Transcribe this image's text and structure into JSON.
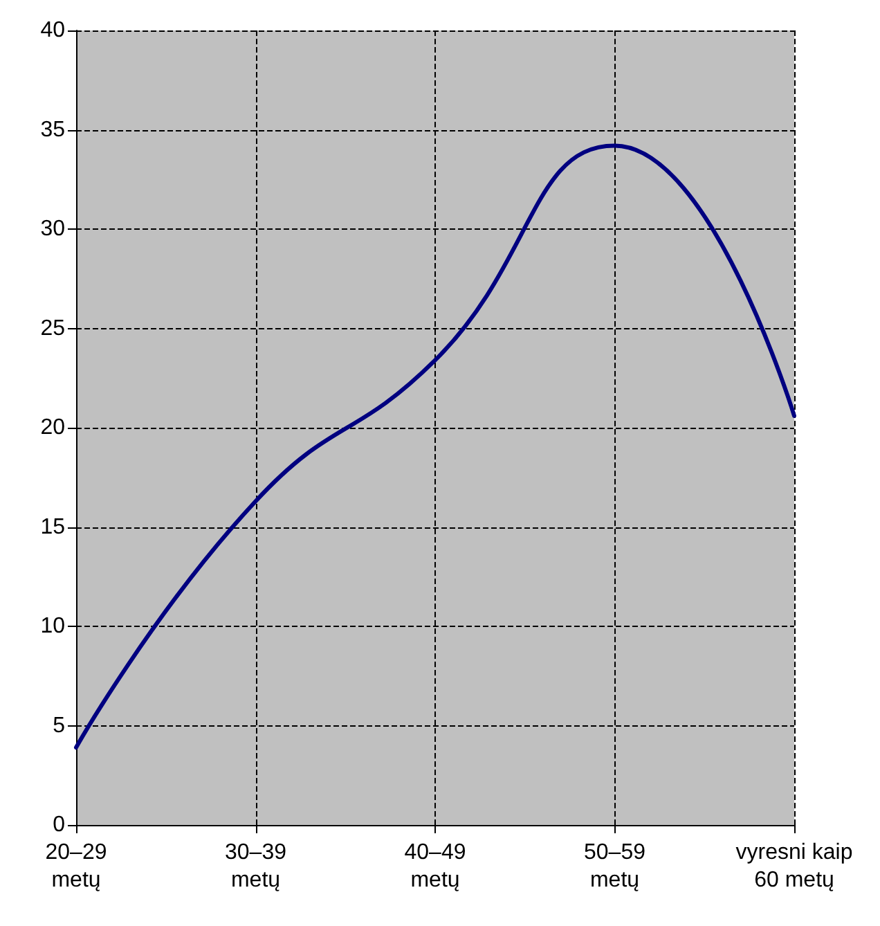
{
  "chart_data": {
    "type": "line",
    "categories": [
      "20–29\nmetų",
      "30–39\nmetų",
      "40–49\nmetų",
      "50–59\nmetų",
      "vyresni kaip\n60 metų"
    ],
    "series": [
      {
        "color": "#000080",
        "values": [
          3.9,
          16.3,
          23.4,
          34.2,
          20.6
        ]
      }
    ],
    "ylim": [
      0,
      40
    ],
    "yticks": [
      0,
      5,
      10,
      15,
      20,
      25,
      30,
      35,
      40
    ],
    "grid": true,
    "marker": "none",
    "line_style": "solid"
  }
}
